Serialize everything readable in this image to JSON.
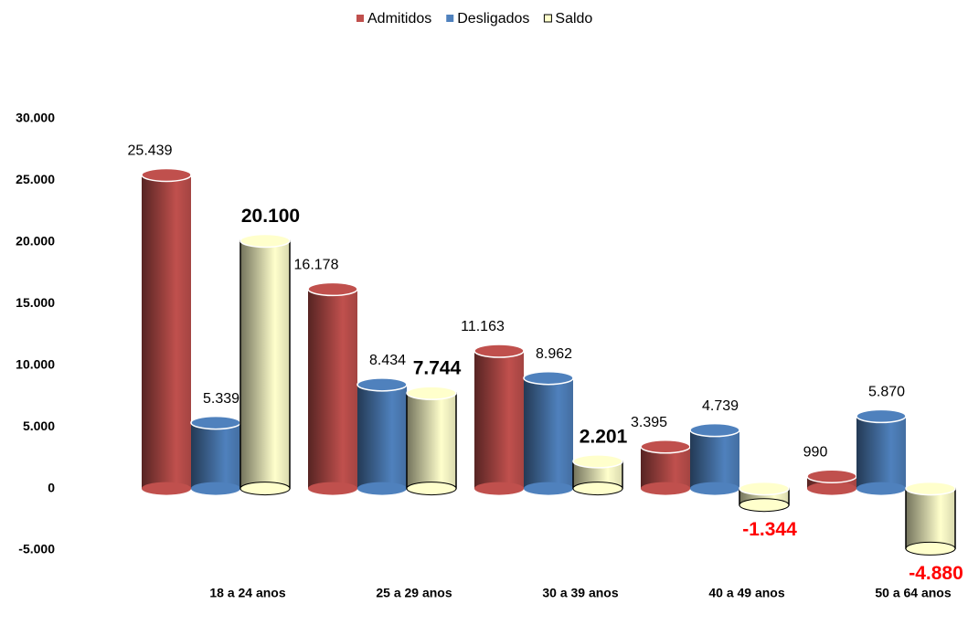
{
  "chart_data": {
    "type": "bar",
    "categories": [
      "18 a 24 anos",
      "25 a 29 anos",
      "30 a 39 anos",
      "40 a 49 anos",
      "50 a 64 anos"
    ],
    "series": [
      {
        "name": "Admitidos",
        "color": "#c0504d",
        "values": [
          25439,
          16178,
          11163,
          3395,
          990
        ],
        "value_labels": [
          "25.439",
          "16.178",
          "11.163",
          "3.395",
          "990"
        ]
      },
      {
        "name": "Desligados",
        "color": "#4f81bd",
        "values": [
          5339,
          8434,
          8962,
          4739,
          5870
        ],
        "value_labels": [
          "5.339",
          "8.434",
          "8.962",
          "4.739",
          "5.870"
        ]
      },
      {
        "name": "Saldo",
        "color": "#ffffcc",
        "values": [
          20100,
          7744,
          2201,
          -1344,
          -4880
        ],
        "value_labels": [
          "20.100",
          "7.744",
          "2.201",
          "-1.344",
          "-4.880"
        ]
      }
    ],
    "ylim": [
      -5000,
      30000
    ],
    "yticks": [
      {
        "value": -5000,
        "label": "-5.000"
      },
      0,
      {
        "value": 5000,
        "label": "5.000"
      },
      {
        "value": 10000,
        "label": "10.000"
      },
      {
        "value": 15000,
        "label": "15.000"
      },
      {
        "value": 20000,
        "label": "20.000"
      },
      {
        "value": 25000,
        "label": "25.000"
      },
      {
        "value": 30000,
        "label": "30.000"
      }
    ],
    "legend": "top",
    "grid": false
  }
}
